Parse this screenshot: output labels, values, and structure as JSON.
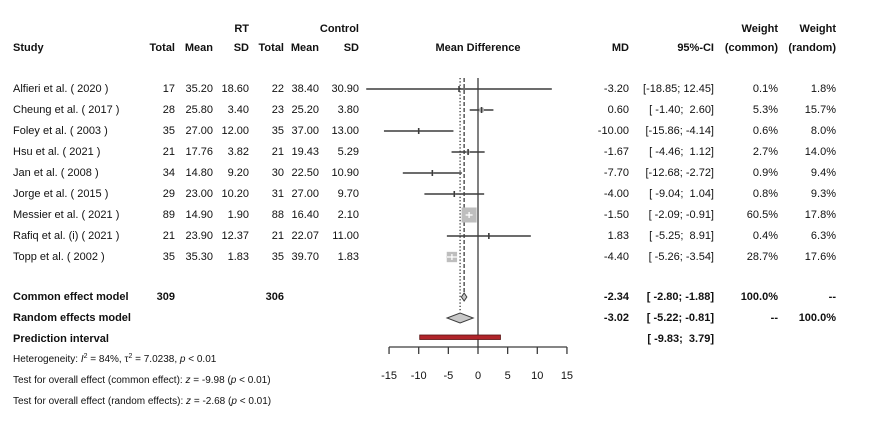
{
  "header": {
    "rt_label": "RT",
    "control_label": "Control",
    "study": "Study",
    "rt_total": "Total",
    "rt_mean": "Mean",
    "rt_sd": "SD",
    "c_total": "Total",
    "c_mean": "Mean",
    "c_sd": "SD",
    "plot_title": "Mean Difference",
    "md": "MD",
    "ci": "95%-CI",
    "weight_common_1": "Weight",
    "weight_common_2": "(common)",
    "weight_random_1": "Weight",
    "weight_random_2": "(random)"
  },
  "studies": [
    {
      "name": "Alfieri et al. ( 2020 )",
      "rt_total": "17",
      "rt_mean": "35.20",
      "rt_sd": "18.60",
      "c_total": "22",
      "c_mean": "38.40",
      "c_sd": "30.90",
      "md": "-3.20",
      "ci": "[-18.85; 12.45]",
      "w_common": "0.1%",
      "w_random": "1.8%"
    },
    {
      "name": "Cheung et al. ( 2017 )",
      "rt_total": "28",
      "rt_mean": "25.80",
      "rt_sd": "3.40",
      "c_total": "23",
      "c_mean": "25.20",
      "c_sd": "3.80",
      "md": "0.60",
      "ci": "[ -1.40;  2.60]",
      "w_common": "5.3%",
      "w_random": "15.7%"
    },
    {
      "name": "Foley et al. ( 2003 )",
      "rt_total": "35",
      "rt_mean": "27.00",
      "rt_sd": "12.00",
      "c_total": "35",
      "c_mean": "37.00",
      "c_sd": "13.00",
      "md": "-10.00",
      "ci": "[-15.86; -4.14]",
      "w_common": "0.6%",
      "w_random": "8.0%"
    },
    {
      "name": "Hsu et al. ( 2021 )",
      "rt_total": "21",
      "rt_mean": "17.76",
      "rt_sd": "3.82",
      "c_total": "21",
      "c_mean": "19.43",
      "c_sd": "5.29",
      "md": "-1.67",
      "ci": "[ -4.46;  1.12]",
      "w_common": "2.7%",
      "w_random": "14.0%"
    },
    {
      "name": "Jan et al. ( 2008 )",
      "rt_total": "34",
      "rt_mean": "14.80",
      "rt_sd": "9.20",
      "c_total": "30",
      "c_mean": "22.50",
      "c_sd": "10.90",
      "md": "-7.70",
      "ci": "[-12.68; -2.72]",
      "w_common": "0.9%",
      "w_random": "9.4%"
    },
    {
      "name": "Jorge et al. ( 2015 )",
      "rt_total": "29",
      "rt_mean": "23.00",
      "rt_sd": "10.20",
      "c_total": "31",
      "c_mean": "27.00",
      "c_sd": "9.70",
      "md": "-4.00",
      "ci": "[ -9.04;  1.04]",
      "w_common": "0.8%",
      "w_random": "9.3%"
    },
    {
      "name": "Messier et al. ( 2021 )",
      "rt_total": "89",
      "rt_mean": "14.90",
      "rt_sd": "1.90",
      "c_total": "88",
      "c_mean": "16.40",
      "c_sd": "2.10",
      "md": "-1.50",
      "ci": "[ -2.09; -0.91]",
      "w_common": "60.5%",
      "w_random": "17.8%"
    },
    {
      "name": "Rafiq et al. (i) ( 2021 )",
      "rt_total": "21",
      "rt_mean": "23.90",
      "rt_sd": "12.37",
      "c_total": "21",
      "c_mean": "22.07",
      "c_sd": "11.00",
      "md": "1.83",
      "ci": "[ -5.25;  8.91]",
      "w_common": "0.4%",
      "w_random": "6.3%"
    },
    {
      "name": "Topp et al. ( 2002 )",
      "rt_total": "35",
      "rt_mean": "35.30",
      "rt_sd": "1.83",
      "c_total": "35",
      "c_mean": "39.70",
      "c_sd": "1.83",
      "md": "-4.40",
      "ci": "[ -5.26; -3.54]",
      "w_common": "28.7%",
      "w_random": "17.6%"
    }
  ],
  "summary": {
    "common": {
      "label": "Common effect model",
      "rt_total": "309",
      "c_total": "306",
      "md": "-2.34",
      "ci": "[ -2.80; -1.88]",
      "w_common": "100.0%",
      "w_random": "--"
    },
    "random": {
      "label": "Random effects model",
      "md": "-3.02",
      "ci": "[ -5.22; -0.81]",
      "w_common": "--",
      "w_random": "100.0%"
    },
    "prediction": {
      "label": "Prediction interval",
      "ci": "[ -9.83;  3.79]"
    }
  },
  "footer": {
    "heterogeneity": {
      "prefix": "Heterogeneity: ",
      "i_sym": "I",
      "i_sup": "2",
      "i_val": " = 84%, ",
      "tau_sym": "τ",
      "tau_sup": "2",
      "tau_val": " = 7.0238, ",
      "p_sym": "p",
      "p_val": " < 0.01"
    },
    "test_common": {
      "prefix": "Test for overall effect (common effect): ",
      "z_sym": "z",
      "z_val": " = -9.98 (",
      "p_sym": "p",
      "p_val": " < 0.01)"
    },
    "test_random": {
      "prefix": "Test for overall effect (random effects): ",
      "z_sym": "z",
      "z_val": " = -2.68 (",
      "p_sym": "p",
      "p_val": " < 0.01)"
    }
  },
  "chart_data": {
    "type": "scatter",
    "variant": "forest-plot",
    "title": "Mean Difference",
    "xlabel": "",
    "ylabel": "",
    "xlim": [
      -15,
      15
    ],
    "x_ticks": [
      -15,
      -10,
      -5,
      0,
      5,
      10,
      15
    ],
    "x_tick_labels": [
      "-15",
      "-10",
      "-5",
      "0",
      "5",
      "10",
      "15"
    ],
    "grid": false,
    "reference_line": 0,
    "studies": [
      {
        "name": "Alfieri et al. ( 2020 )",
        "md": -3.2,
        "ci": [
          -18.85,
          12.45
        ],
        "weight_common": 0.1,
        "weight_random": 1.8
      },
      {
        "name": "Cheung et al. ( 2017 )",
        "md": 0.6,
        "ci": [
          -1.4,
          2.6
        ],
        "weight_common": 5.3,
        "weight_random": 15.7
      },
      {
        "name": "Foley et al. ( 2003 )",
        "md": -10.0,
        "ci": [
          -15.86,
          -4.14
        ],
        "weight_common": 0.6,
        "weight_random": 8.0
      },
      {
        "name": "Hsu et al. ( 2021 )",
        "md": -1.67,
        "ci": [
          -4.46,
          1.12
        ],
        "weight_common": 2.7,
        "weight_random": 14.0
      },
      {
        "name": "Jan et al. ( 2008 )",
        "md": -7.7,
        "ci": [
          -12.68,
          -2.72
        ],
        "weight_common": 0.9,
        "weight_random": 9.4
      },
      {
        "name": "Jorge et al. ( 2015 )",
        "md": -4.0,
        "ci": [
          -9.04,
          1.04
        ],
        "weight_common": 0.8,
        "weight_random": 9.3
      },
      {
        "name": "Messier et al. ( 2021 )",
        "md": -1.5,
        "ci": [
          -2.09,
          -0.91
        ],
        "weight_common": 60.5,
        "weight_random": 17.8
      },
      {
        "name": "Rafiq et al. (i) ( 2021 )",
        "md": 1.83,
        "ci": [
          -5.25,
          8.91
        ],
        "weight_common": 0.4,
        "weight_random": 6.3
      },
      {
        "name": "Topp et al. ( 2002 )",
        "md": -4.4,
        "ci": [
          -5.26,
          -3.54
        ],
        "weight_common": 28.7,
        "weight_random": 17.6
      }
    ],
    "common_effect": {
      "md": -2.34,
      "ci": [
        -2.8,
        -1.88
      ]
    },
    "random_effects": {
      "md": -3.02,
      "ci": [
        -5.22,
        -0.81
      ]
    },
    "prediction_interval": [
      -9.83,
      3.79
    ],
    "colors": {
      "square": "#bebebe",
      "line": "#3c3c3c",
      "diamond": "#c8c8c8",
      "prediction": "#b0242a",
      "prediction_border": "#5a1212"
    }
  }
}
